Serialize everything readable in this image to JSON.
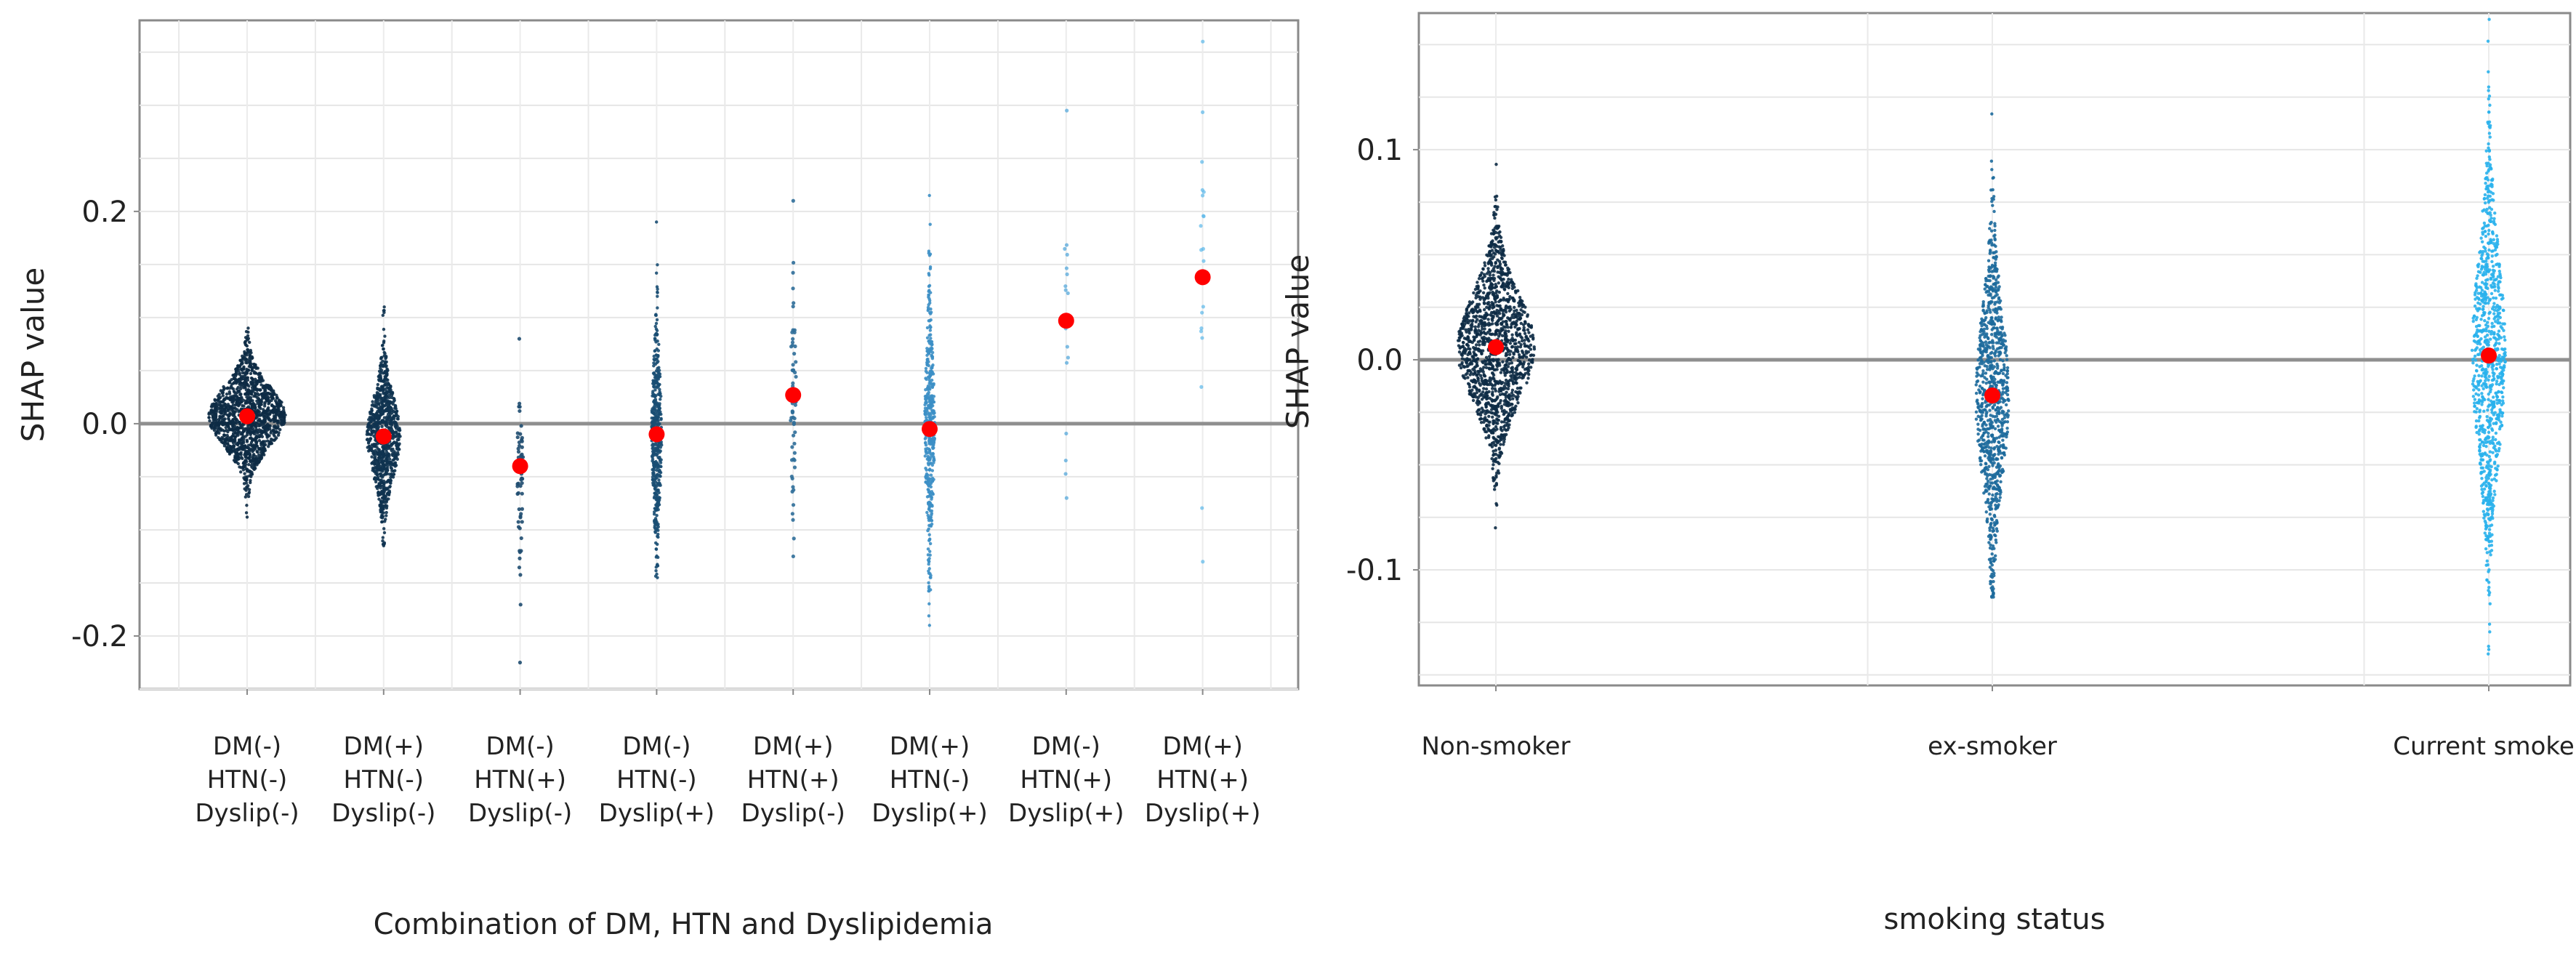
{
  "chart_data": [
    {
      "type": "scatter",
      "subtype": "beeswarm",
      "xlabel": "Combination of DM, HTN and Dyslipidemia",
      "ylabel": "SHAP value",
      "ylim": [
        -0.25,
        0.38
      ],
      "yticks": [
        -0.2,
        0.0,
        0.2
      ],
      "ytick_labels": [
        "-0.2",
        "0.0",
        "0.2"
      ],
      "grid": true,
      "reference_line": 0.0,
      "mean_marker_color": "#ff0000",
      "categories": [
        {
          "label": [
            "DM(-)",
            "HTN(-)",
            "Dyslip(-)"
          ],
          "mean": 0.007,
          "min": -0.088,
          "max": 0.09,
          "density": "very high",
          "color": "#0d2b45"
        },
        {
          "label": [
            "DM(+)",
            "HTN(-)",
            "Dyslip(-)"
          ],
          "mean": -0.012,
          "min": -0.115,
          "max": 0.11,
          "density": "high",
          "color": "#0f3350"
        },
        {
          "label": [
            "DM(-)",
            "HTN(+)",
            "Dyslip(-)"
          ],
          "mean": -0.04,
          "min": -0.225,
          "max": 0.08,
          "density": "low",
          "color": "#1f4d70"
        },
        {
          "label": [
            "DM(-)",
            "HTN(-)",
            "Dyslip(+)"
          ],
          "mean": -0.01,
          "min": -0.145,
          "max": 0.19,
          "density": "medium",
          "color": "#1a4e73"
        },
        {
          "label": [
            "DM(+)",
            "HTN(+)",
            "Dyslip(-)"
          ],
          "mean": 0.027,
          "min": -0.125,
          "max": 0.21,
          "density": "low",
          "color": "#2f6e99"
        },
        {
          "label": [
            "DM(+)",
            "HTN(-)",
            "Dyslip(+)"
          ],
          "mean": -0.005,
          "min": -0.19,
          "max": 0.215,
          "density": "medium",
          "color": "#3c8fc5"
        },
        {
          "label": [
            "DM(-)",
            "HTN(+)",
            "Dyslip(+)"
          ],
          "mean": 0.097,
          "min": -0.07,
          "max": 0.295,
          "density": "sparse",
          "color": "#4aa3d8"
        },
        {
          "label": [
            "DM(+)",
            "HTN(+)",
            "Dyslip(+)"
          ],
          "mean": 0.138,
          "min": -0.13,
          "max": 0.36,
          "density": "sparse",
          "color": "#5bb8ea"
        }
      ]
    },
    {
      "type": "scatter",
      "subtype": "beeswarm",
      "xlabel": "smoking status",
      "ylabel": "SHAP value",
      "ylim": [
        -0.155,
        0.165
      ],
      "yticks": [
        -0.1,
        0.0,
        0.1
      ],
      "ytick_labels": [
        "-0.1",
        "0.0",
        "0.1"
      ],
      "grid": true,
      "reference_line": 0.0,
      "mean_marker_color": "#ff0000",
      "categories": [
        {
          "label": [
            "Non-smoker"
          ],
          "mean": 0.006,
          "min": -0.08,
          "max": 0.093,
          "density": "very high",
          "color": "#0d2b45"
        },
        {
          "label": [
            "ex-smoker"
          ],
          "mean": -0.017,
          "min": -0.113,
          "max": 0.117,
          "density": "high",
          "color": "#1d6a9c"
        },
        {
          "label": [
            "Current smoker"
          ],
          "mean": 0.002,
          "min": -0.14,
          "max": 0.162,
          "density": "high",
          "color": "#29b1ec"
        }
      ]
    }
  ]
}
